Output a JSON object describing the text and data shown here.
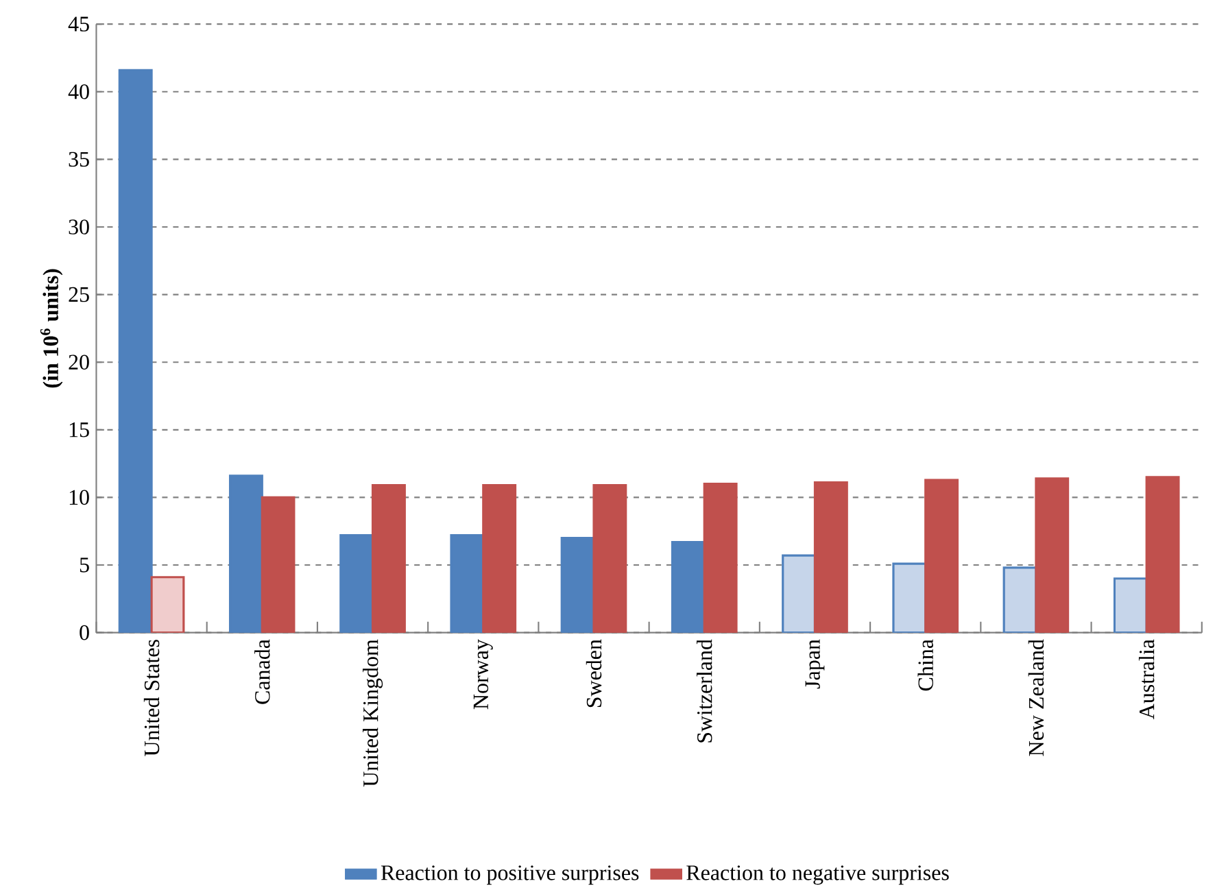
{
  "chart_data": {
    "type": "bar",
    "ylabel": "(in 10$^{6}$ units)",
    "categories": [
      "United States",
      "Canada",
      "United Kingdom",
      "Norway",
      "Sweden",
      "Switzerland",
      "Japan",
      "China",
      "New Zealand",
      "Australia"
    ],
    "series": [
      {
        "name": "Reaction to positive surprises",
        "color": "#4f81bd",
        "colors": [
          "#4f81bd",
          "#4f81bd",
          "#4f81bd",
          "#4f81bd",
          "#4f81bd",
          "#4f81bd",
          "#c6d5ea",
          "#c6d5ea",
          "#c6d5ea",
          "#c6d5ea"
        ],
        "values": [
          41.6,
          11.6,
          7.2,
          7.2,
          7.0,
          6.7,
          5.7,
          5.1,
          4.8,
          4.0
        ]
      },
      {
        "name": "Reaction to negative surprises",
        "color": "#c0504d",
        "colors": [
          "#f0cccc",
          "#c0504d",
          "#c0504d",
          "#c0504d",
          "#c0504d",
          "#c0504d",
          "#c0504d",
          "#c0504d",
          "#c0504d",
          "#c0504d"
        ],
        "values": [
          4.1,
          10.0,
          10.9,
          10.9,
          10.9,
          11.0,
          11.1,
          11.3,
          11.4,
          11.5
        ]
      }
    ],
    "ylim": [
      0,
      45
    ],
    "yticks": [
      0,
      5,
      10,
      15,
      20,
      25,
      30,
      35,
      40,
      45
    ],
    "grid": "y",
    "legend": "bottom"
  }
}
